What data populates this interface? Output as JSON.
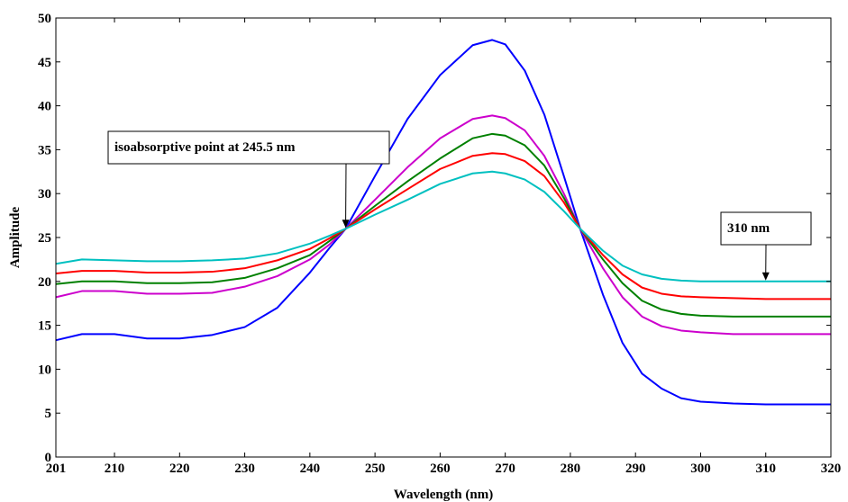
{
  "chart_data": {
    "type": "line",
    "title": "",
    "xlabel": "Wavelength (nm)",
    "ylabel": "Amplitude",
    "xlim": [
      201,
      320
    ],
    "ylim": [
      0,
      50
    ],
    "xticks": [
      201,
      210,
      220,
      230,
      240,
      250,
      260,
      270,
      280,
      290,
      300,
      310,
      320
    ],
    "yticks": [
      0,
      5,
      10,
      15,
      20,
      25,
      30,
      35,
      40,
      45,
      50
    ],
    "grid": false,
    "legend": "none",
    "x": [
      201,
      205,
      210,
      215,
      220,
      225,
      230,
      235,
      240,
      243,
      245.5,
      250,
      255,
      260,
      265,
      268,
      270,
      273,
      276,
      279,
      281.5,
      285,
      288,
      291,
      294,
      297,
      300,
      305,
      310,
      315,
      320
    ],
    "series": [
      {
        "color": "#0000ff",
        "values": [
          13.3,
          14.0,
          14.0,
          13.5,
          13.5,
          13.9,
          14.8,
          17.0,
          21.0,
          23.8,
          26.0,
          32.0,
          38.5,
          43.5,
          46.9,
          47.5,
          47.0,
          44.0,
          39.0,
          32.0,
          26.0,
          18.5,
          13.0,
          9.5,
          7.8,
          6.7,
          6.3,
          6.1,
          6.0,
          6.0,
          6.0
        ]
      },
      {
        "color": "#cc00cc",
        "values": [
          18.2,
          18.9,
          18.9,
          18.6,
          18.6,
          18.7,
          19.4,
          20.6,
          22.5,
          24.2,
          26.0,
          29.3,
          33.0,
          36.3,
          38.5,
          38.9,
          38.6,
          37.2,
          34.3,
          30.0,
          26.0,
          21.5,
          18.2,
          16.0,
          14.9,
          14.4,
          14.2,
          14.0,
          14.0,
          14.0,
          14.0
        ]
      },
      {
        "color": "#008000",
        "values": [
          19.7,
          20.0,
          20.0,
          19.8,
          19.8,
          19.9,
          20.4,
          21.5,
          23.0,
          24.6,
          26.0,
          28.6,
          31.4,
          34.0,
          36.3,
          36.8,
          36.6,
          35.5,
          33.2,
          29.5,
          26.0,
          22.5,
          19.8,
          17.8,
          16.8,
          16.3,
          16.1,
          16.0,
          16.0,
          16.0,
          16.0
        ]
      },
      {
        "color": "#ff0000",
        "values": [
          20.9,
          21.2,
          21.2,
          21.0,
          21.0,
          21.1,
          21.5,
          22.4,
          23.7,
          24.9,
          26.0,
          28.2,
          30.5,
          32.8,
          34.3,
          34.6,
          34.5,
          33.7,
          32.0,
          29.0,
          26.0,
          23.0,
          20.8,
          19.3,
          18.6,
          18.3,
          18.2,
          18.1,
          18.0,
          18.0,
          18.0
        ]
      },
      {
        "color": "#00c0c0",
        "values": [
          22.0,
          22.5,
          22.4,
          22.3,
          22.3,
          22.4,
          22.6,
          23.2,
          24.3,
          25.2,
          26.0,
          27.6,
          29.3,
          31.1,
          32.3,
          32.5,
          32.3,
          31.6,
          30.2,
          28.0,
          26.0,
          23.5,
          21.8,
          20.8,
          20.3,
          20.1,
          20.0,
          20.0,
          20.0,
          20.0,
          20.0
        ]
      }
    ],
    "annotations": [
      {
        "text": "isoabsorptive point at 245.5 nm",
        "x": 245.5,
        "y": 26
      },
      {
        "text": "310 nm",
        "x": 310,
        "y": 20
      }
    ]
  }
}
